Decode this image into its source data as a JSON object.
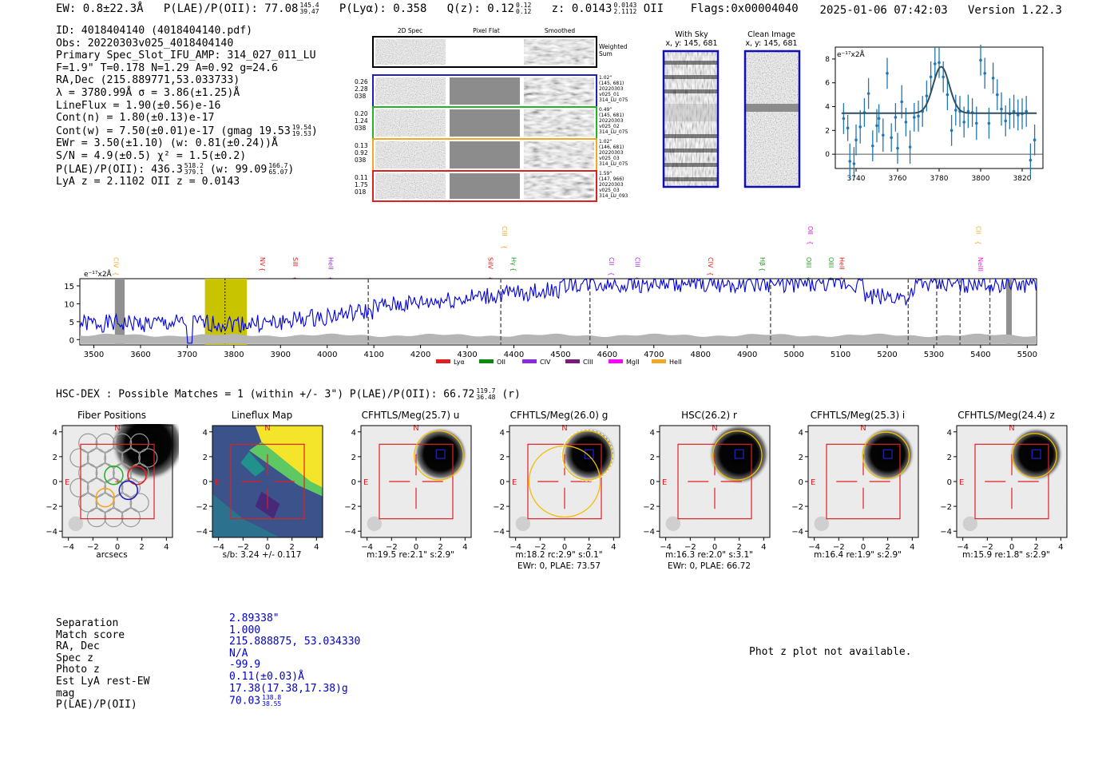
{
  "header": {
    "ew": "EW: 0.8±22.3Å",
    "plae": "P(LAE)/P(OII): 77.08",
    "plae_hi": "145.4",
    "plae_lo": "39.47",
    "plya": "P(Lyα): 0.358",
    "qz": "Q(z): 0.12",
    "qz_hi": "0.12",
    "qz_lo": "0.12",
    "z": "z: 0.0143",
    "z_hi": "0.0143",
    "z_lo": "2.1112",
    "z_line": "OII",
    "flags": "Flags:0x00004040",
    "datetime": "2025-01-06 07:42:03",
    "version": "Version 1.22.3"
  },
  "info": {
    "id": "ID: 4018404140 (4018404140.pdf)",
    "obs": "Obs: 20220303v025_4018404140",
    "primary": "Primary Spec_Slot_IFU_AMP: 314_027_011_LU",
    "fit": "F=1.9\"  T=0.178  N=1.29  A=0.92  g=24.6",
    "radec": "RA,Dec (215.889771,53.033733)",
    "lambda": "λ = 3780.99Å  σ = 3.86(±1.25)Å",
    "lineflux": "LineFlux = 1.90(±0.56)e-16",
    "contn": "Cont(n) = 1.80(±0.13)e-17",
    "contw": "Cont(w) = 7.50(±0.01)e-17 (gmag 19.53",
    "contw_hi": "19.54",
    "contw_lo": "19.53",
    "ewr": "EWr = 3.50(±1.10) (w: 0.81(±0.24))Å",
    "sn": "S/N = 4.9(±0.5)  χ² = 1.5(±0.2)",
    "plae": "P(LAE)/P(OII): 436.3",
    "plae_hi": "518.2",
    "plae_lo": "379.1",
    "plae_w": "(w: 99.09",
    "plae_w_hi": "166.7",
    "plae_w_lo": "65.07",
    "lyaz": "LyA z = 2.1102  OII z = 0.0143"
  },
  "cutouts": {
    "col_titles": [
      "2D Spec",
      "Pixel Flat",
      "Smoothed"
    ],
    "weighted_sum": "Weighted Sum",
    "rows": [
      {
        "left": [
          "0.26",
          "2.28",
          "038"
        ],
        "right": [
          "1.02\"",
          "(145, 681)",
          "20220303",
          "v025_01",
          "314_LU_075"
        ],
        "color": "#1f1fbf"
      },
      {
        "left": [
          "0.20",
          "1.24",
          "038"
        ],
        "right": [
          "0.49\"",
          "(145, 681)",
          "20220303",
          "v025_02",
          "314_LU_075"
        ],
        "color": "#22b422"
      },
      {
        "left": [
          "0.13",
          "0.92",
          "038"
        ],
        "right": [
          "1.02\"",
          "(146, 681)",
          "20220303",
          "v025_03",
          "314_LU_075"
        ],
        "color": "#f5a623"
      },
      {
        "left": [
          "0.11",
          "1.75",
          "018"
        ],
        "right": [
          "1.59\"",
          "(147, 966)",
          "20220303",
          "v025_03",
          "314_LU_093"
        ],
        "color": "#e02020"
      }
    ]
  },
  "sky": {
    "with_sky": "With Sky",
    "with_sky_xy": "x, y: 145, 681",
    "clean": "Clean Image",
    "clean_xy": "x, y: 145, 681"
  },
  "zoom_plot": {
    "units": "e⁻¹⁷x2Å",
    "xticks": [
      "3740",
      "3760",
      "3780",
      "3800",
      "3820"
    ],
    "yticks": [
      "0",
      "2",
      "4",
      "6",
      "8"
    ]
  },
  "spectrum": {
    "units": "e⁻¹⁷x2Å",
    "xticks": [
      "3500",
      "3600",
      "3700",
      "3800",
      "3900",
      "4000",
      "4100",
      "4200",
      "4300",
      "4400",
      "4500",
      "4600",
      "4700",
      "4800",
      "4900",
      "5000",
      "5100",
      "5200",
      "5300",
      "5400",
      "5500"
    ],
    "yticks": [
      "0",
      "5",
      "10",
      "15"
    ],
    "lines": [
      {
        "label": "CIV",
        "wave": 3548,
        "color": "#f5a623",
        "level": 1
      },
      {
        "label": "NV",
        "wave": 3862,
        "color": "#e02020",
        "level": 1
      },
      {
        "label": "SiII",
        "wave": 3932,
        "color": "#e02020",
        "level": 1
      },
      {
        "label": "HeII",
        "wave": 4008,
        "color": "#9b30d9",
        "level": 1
      },
      {
        "label": "CIII",
        "wave": 4380,
        "color": "#f5a623",
        "level": 0
      },
      {
        "label": "SiIV",
        "wave": 4350,
        "color": "#e02020",
        "level": 1
      },
      {
        "label": "Hγ",
        "wave": 4400,
        "color": "#22a022",
        "level": 1
      },
      {
        "label": "CII",
        "wave": 4610,
        "color": "#9b30d9",
        "level": 1
      },
      {
        "label": "CIII",
        "wave": 4665,
        "color": "#9b30d9",
        "level": 1
      },
      {
        "label": "CIV",
        "wave": 4822,
        "color": "#e02020",
        "level": 1
      },
      {
        "label": "Hβ",
        "wave": 4933,
        "color": "#22a022",
        "level": 1
      },
      {
        "label": "OII",
        "wave": 5036,
        "color": "#e020e0",
        "level": 0
      },
      {
        "label": "OIII",
        "wave": 5032,
        "color": "#22a022",
        "level": 1
      },
      {
        "label": "OIII",
        "wave": 5080,
        "color": "#22a022",
        "level": 1
      },
      {
        "label": "HeII",
        "wave": 5103,
        "color": "#e02020",
        "level": 1
      },
      {
        "label": "CII",
        "wave": 5396,
        "color": "#f5a623",
        "level": 0
      },
      {
        "label": "NeIII",
        "wave": 5400,
        "color": "#e020e0",
        "level": 1
      }
    ],
    "legend": [
      {
        "label": "Lyα",
        "color": "#e02020"
      },
      {
        "label": "OII",
        "color": "#0a8a0a"
      },
      {
        "label": "CIV",
        "color": "#8a2be2"
      },
      {
        "label": "CIII",
        "color": "#7a1a7a"
      },
      {
        "label": "MgII",
        "color": "#ff00ff"
      },
      {
        "label": "HeII",
        "color": "#f5a623"
      }
    ]
  },
  "hsc": {
    "title": "HSC-DEX : Possible Matches = 1 (within +/- 3\")  P(LAE)/P(OII): 66.72",
    "title_hi": "119.7",
    "title_lo": "36.48",
    "title_band": "(r)",
    "panels": [
      {
        "title": "Fiber Positions",
        "cap1": "arcsecs",
        "cap2": ""
      },
      {
        "title": "Lineflux Map",
        "cap1": "s/b: 3.24 +/- 0.117",
        "cap2": ""
      },
      {
        "title": "CFHTLS/Meg(25.7) u",
        "cap1": "m:19.5  re:2.1\"  s:2.9\"",
        "cap2": ""
      },
      {
        "title": "CFHTLS/Meg(26.0) g",
        "cap1": "m:18.2 rc:2.9\"  s:0.1\"",
        "cap2": "EWr: 0, PLAE: 73.57"
      },
      {
        "title": "HSC(26.2) r",
        "cap1": "m:16.3  re:2.0\"  s:3.1\"",
        "cap2": "EWr: 0, PLAE: 66.72"
      },
      {
        "title": "CFHTLS/Meg(25.3) i",
        "cap1": "m:16.4  re:1.9\"  s:2.9\"",
        "cap2": ""
      },
      {
        "title": "CFHTLS/Meg(24.4) z",
        "cap1": "m:15.9  re:1.8\"  s:2.9\"",
        "cap2": ""
      }
    ],
    "axis_ticks": [
      "−4",
      "−2",
      "0",
      "2",
      "4"
    ],
    "north": "N",
    "east": "E"
  },
  "separation": {
    "labels": [
      "Separation",
      "Match score",
      "RA, Dec",
      "Spec z",
      "Photo z",
      "Est LyA rest-EW",
      "mag",
      "P(LAE)/P(OII)"
    ],
    "values": [
      "2.89338\"",
      "1.000",
      "215.888875, 53.034330",
      "N/A",
      "-99.9",
      "0.11(±0.03)Å",
      "17.38(17.38,17.38)g",
      "70.03"
    ],
    "plae_hi": "138.8",
    "plae_lo": "38.55"
  },
  "photz_note": "Phot z plot not available."
}
